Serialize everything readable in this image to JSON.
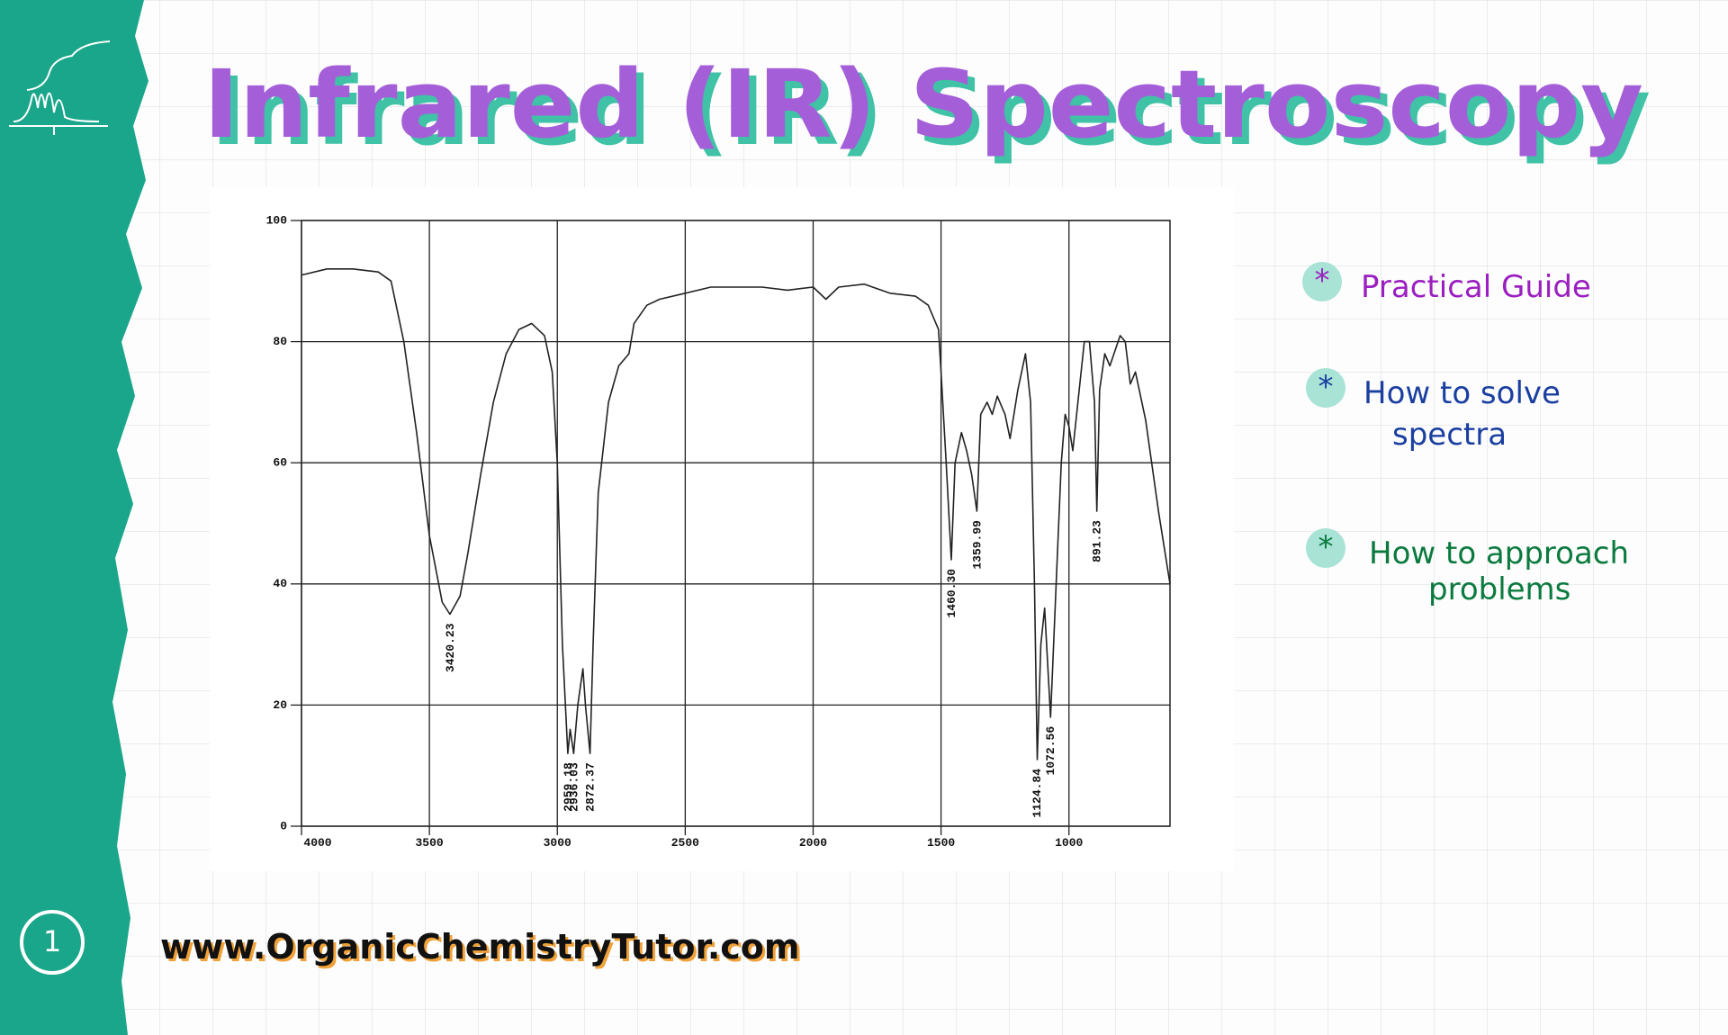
{
  "title": "Infrared (IR) Spectroscopy",
  "bullets": [
    [
      "Practical Guide"
    ],
    [
      "How to solve",
      "spectra"
    ],
    [
      "How to approach",
      "problems"
    ]
  ],
  "footer": "www.OrganicChemistryTutor.com",
  "slide_number": "1",
  "chart_data": {
    "type": "line",
    "color": "#222222",
    "grid": true,
    "xlim": [
      4000,
      605
    ],
    "ylim": [
      0,
      100
    ],
    "xticks": [
      4000,
      3500,
      3000,
      2500,
      2000,
      1500,
      1000
    ],
    "yticks": [
      0,
      20,
      40,
      60,
      80,
      100
    ],
    "x": [
      4000,
      3900,
      3800,
      3700,
      3650,
      3600,
      3550,
      3500,
      3450,
      3420,
      3380,
      3350,
      3300,
      3250,
      3200,
      3150,
      3100,
      3050,
      3020,
      3000,
      2980,
      2959,
      2950,
      2936,
      2920,
      2900,
      2890,
      2872,
      2860,
      2840,
      2800,
      2760,
      2720,
      2700,
      2650,
      2600,
      2500,
      2400,
      2300,
      2200,
      2100,
      2000,
      1950,
      1900,
      1800,
      1700,
      1600,
      1550,
      1510,
      1500,
      1480,
      1460,
      1445,
      1420,
      1400,
      1380,
      1360,
      1345,
      1320,
      1300,
      1280,
      1250,
      1230,
      1200,
      1170,
      1150,
      1135,
      1124,
      1110,
      1095,
      1072,
      1050,
      1030,
      1015,
      1000,
      985,
      960,
      940,
      920,
      900,
      891,
      880,
      860,
      840,
      800,
      780,
      760,
      740,
      700,
      650,
      605
    ],
    "values": [
      91,
      92,
      92,
      91.5,
      90,
      80,
      65,
      48,
      37,
      35,
      38,
      45,
      58,
      70,
      78,
      82,
      83,
      81,
      75,
      60,
      30,
      12,
      16,
      12,
      20,
      26,
      20,
      12,
      30,
      55,
      70,
      76,
      78,
      83,
      86,
      87,
      88,
      89,
      89,
      89,
      88.5,
      89,
      87,
      89,
      89.5,
      88,
      87.5,
      86,
      82,
      75,
      60,
      44,
      60,
      65,
      62,
      58,
      52,
      68,
      70,
      68,
      71,
      68,
      64,
      72,
      78,
      70,
      40,
      11,
      30,
      36,
      18,
      40,
      60,
      68,
      66,
      62,
      72,
      80,
      80,
      70,
      52,
      72,
      78,
      76,
      81,
      80,
      73,
      75,
      67,
      52,
      40
    ],
    "peak_labels": [
      {
        "value": 3420.23,
        "label": "3420.23"
      },
      {
        "value": 2959.18,
        "label": "2959.18"
      },
      {
        "value": 2936.03,
        "label": "2936.03"
      },
      {
        "value": 2872.37,
        "label": "2872.37"
      },
      {
        "value": 1460.3,
        "label": "1460.30"
      },
      {
        "value": 1359.99,
        "label": "1359.99"
      },
      {
        "value": 1124.84,
        "label": "1124.84"
      },
      {
        "value": 1072.56,
        "label": "1072.56"
      },
      {
        "value": 891.23,
        "label": "891.23"
      }
    ]
  }
}
